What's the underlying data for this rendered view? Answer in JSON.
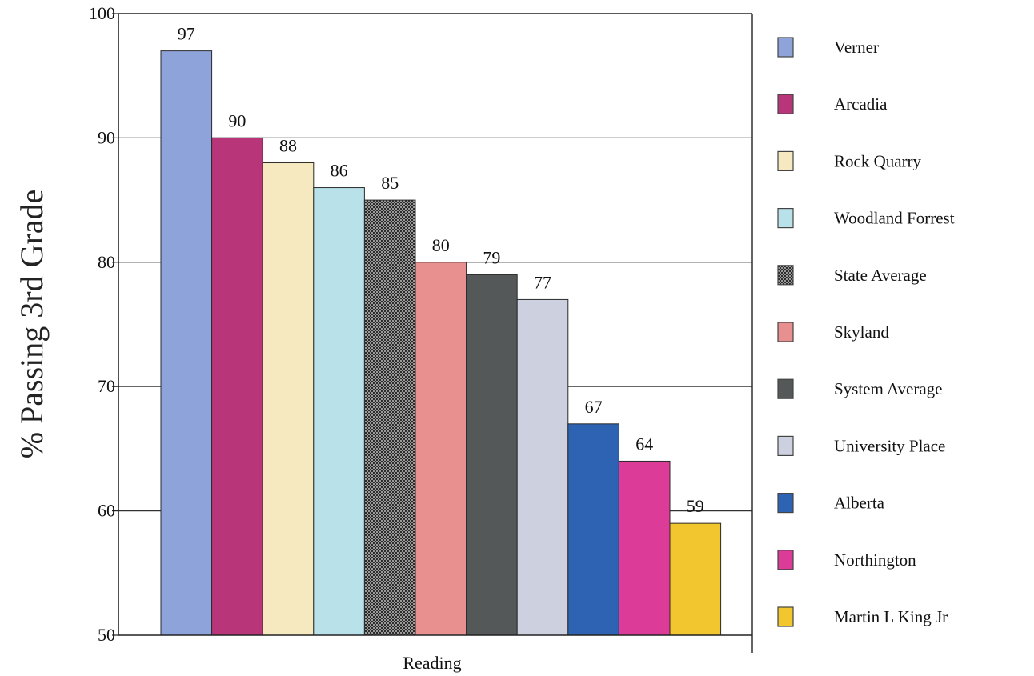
{
  "chart_data": {
    "type": "bar",
    "title": "",
    "xlabel": "",
    "ylabel": "% Passing 3rd Grade",
    "categories": [
      "Reading"
    ],
    "ylim": [
      50,
      100
    ],
    "yticks": [
      50,
      60,
      70,
      80,
      90,
      100
    ],
    "grid": "horizontal",
    "legend_position": "right",
    "series": [
      {
        "name": "Verner",
        "values": [
          97
        ],
        "color": "#8ea3d9",
        "pattern": "solid"
      },
      {
        "name": "Arcadia",
        "values": [
          90
        ],
        "color": "#b8357a",
        "pattern": "solid"
      },
      {
        "name": "Rock Quarry",
        "values": [
          88
        ],
        "color": "#f6e9bf",
        "pattern": "solid"
      },
      {
        "name": "Woodland Forrest",
        "values": [
          86
        ],
        "color": "#b9e1e9",
        "pattern": "solid"
      },
      {
        "name": "State Average",
        "values": [
          85
        ],
        "color": "#5a5a5a",
        "pattern": "checker"
      },
      {
        "name": "Skyland",
        "values": [
          80
        ],
        "color": "#e89090",
        "pattern": "solid"
      },
      {
        "name": "System Average",
        "values": [
          79
        ],
        "color": "#545858",
        "pattern": "solid"
      },
      {
        "name": "University Place",
        "values": [
          77
        ],
        "color": "#cdd0df",
        "pattern": "solid"
      },
      {
        "name": "Alberta",
        "values": [
          67
        ],
        "color": "#2e63b3",
        "pattern": "solid"
      },
      {
        "name": "Northington",
        "values": [
          64
        ],
        "color": "#dd3b98",
        "pattern": "solid"
      },
      {
        "name": "Martin L King Jr",
        "values": [
          59
        ],
        "color": "#f2c62e",
        "pattern": "solid"
      }
    ]
  }
}
